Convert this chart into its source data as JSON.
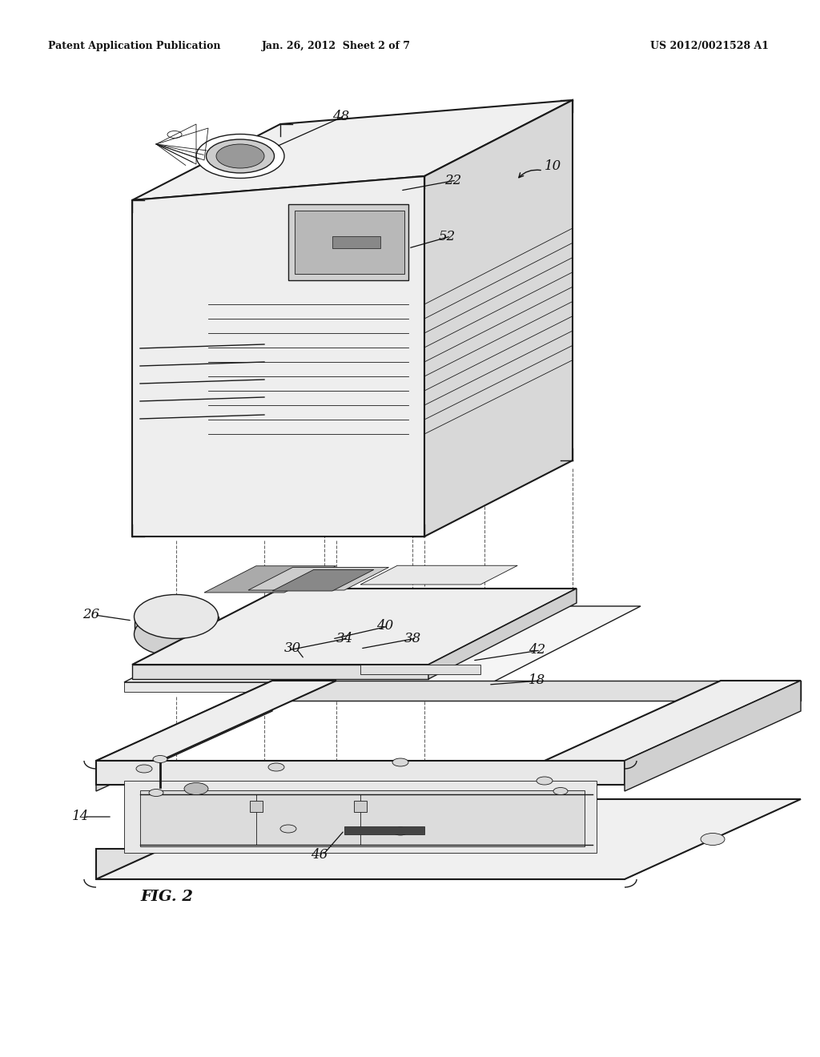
{
  "bg_color": "#ffffff",
  "line_color": "#1a1a1a",
  "header_left": "Patent Application Publication",
  "header_mid": "Jan. 26, 2012  Sheet 2 of 7",
  "header_right": "US 2012/0021528 A1",
  "fig_label": "FIG. 2",
  "lw_thick": 1.5,
  "lw_main": 1.0,
  "lw_thin": 0.6,
  "face_top": "#f2f2f2",
  "face_front": "#e8e8e8",
  "face_right": "#d8d8d8",
  "face_dark": "#c0c0c0",
  "face_darker": "#a8a8a8",
  "face_mid": "#eeeeee",
  "face_light": "#f8f8f8"
}
